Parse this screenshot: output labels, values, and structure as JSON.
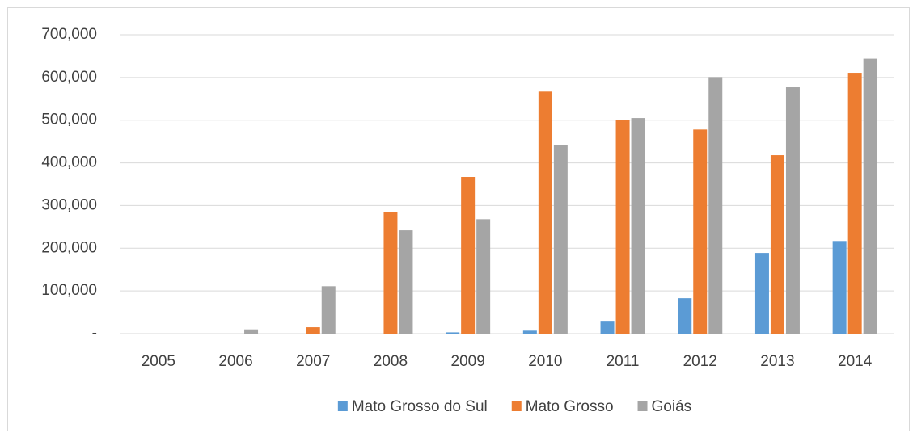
{
  "chart_data": {
    "type": "bar",
    "categories": [
      "2005",
      "2006",
      "2007",
      "2008",
      "2009",
      "2010",
      "2011",
      "2012",
      "2013",
      "2014"
    ],
    "series": [
      {
        "name": "Mato Grosso do Sul",
        "color": "#5b9bd5",
        "values": [
          0,
          0,
          0,
          0,
          3000,
          7000,
          30000,
          83000,
          189000,
          217000
        ]
      },
      {
        "name": "Mato Grosso",
        "color": "#ed7d31",
        "values": [
          0,
          0,
          15000,
          285000,
          367000,
          567000,
          501000,
          478000,
          418000,
          611000
        ]
      },
      {
        "name": "Goiás",
        "color": "#a5a5a5",
        "values": [
          0,
          10000,
          111000,
          242000,
          268000,
          442000,
          505000,
          601000,
          577000,
          644000
        ]
      }
    ],
    "ylim": [
      0,
      700000
    ],
    "yticks": [
      {
        "value": 0,
        "label": "-"
      },
      {
        "value": 100000,
        "label": "100,000"
      },
      {
        "value": 200000,
        "label": "200,000"
      },
      {
        "value": 300000,
        "label": "300,000"
      },
      {
        "value": 400000,
        "label": "400,000"
      },
      {
        "value": 500000,
        "label": "500,000"
      },
      {
        "value": 600000,
        "label": "600,000"
      },
      {
        "value": 700000,
        "label": "700,000"
      }
    ],
    "grid": true,
    "legend": "bottom"
  }
}
